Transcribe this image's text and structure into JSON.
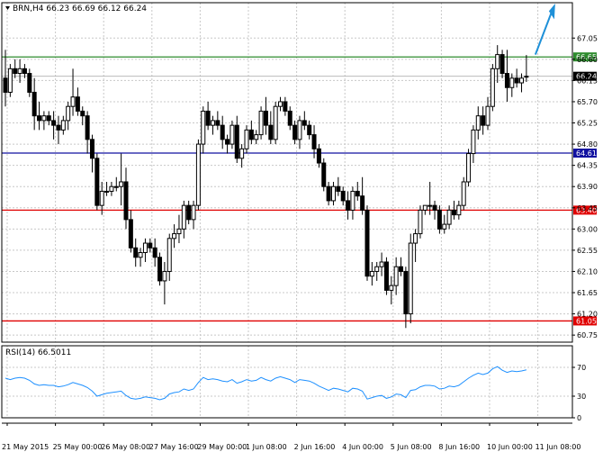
{
  "chart_data": {
    "type": "candlestick",
    "symbol_label": "BRN,H4",
    "ohlc_readout": "66.23 66.69 66.12 66.24",
    "grid": true,
    "price_axis": {
      "ylim": [
        60.6,
        67.8
      ],
      "ticks": [
        "67.05",
        "66.60",
        "66.15",
        "65.70",
        "65.25",
        "64.80",
        "64.35",
        "63.90",
        "63.45",
        "63.00",
        "62.55",
        "62.10",
        "61.65",
        "61.20",
        "60.75"
      ]
    },
    "time_axis": {
      "labels": [
        "21 May 2015",
        "25 May 00:00",
        "26 May 08:00",
        "27 May 16:00",
        "29 May 00:00",
        "1 Jun 08:00",
        "2 Jun 16:00",
        "4 Jun 00:00",
        "5 Jun 08:00",
        "8 Jun 16:00",
        "10 Jun 00:00",
        "11 Jun 08:00"
      ],
      "label_slot": [
        0,
        10,
        20,
        30,
        40,
        50,
        60,
        70,
        80,
        90,
        100,
        110
      ]
    },
    "levels": [
      {
        "value": 66.65,
        "label": "66.65",
        "color": "#2e8b2e"
      },
      {
        "value": 64.61,
        "label": "64.61",
        "color": "#1010a0"
      },
      {
        "value": 63.4,
        "label": "63.40",
        "color": "#e00000"
      },
      {
        "value": 61.05,
        "label": "61.05",
        "color": "#e00000"
      }
    ],
    "current_price": {
      "value": 66.24,
      "label": "66.24"
    },
    "trend_arrow": {
      "direction": "up",
      "color": "#1e90d8"
    },
    "candles": [
      [
        66.2,
        66.8,
        65.6,
        65.9
      ],
      [
        65.9,
        66.5,
        65.8,
        66.4
      ],
      [
        66.4,
        66.6,
        66.2,
        66.3
      ],
      [
        66.3,
        66.6,
        66.1,
        66.4
      ],
      [
        66.4,
        66.5,
        66.2,
        66.3
      ],
      [
        66.3,
        66.4,
        65.8,
        65.9
      ],
      [
        65.9,
        66.2,
        65.1,
        65.4
      ],
      [
        65.4,
        65.7,
        65.1,
        65.3
      ],
      [
        65.3,
        65.5,
        65.1,
        65.4
      ],
      [
        65.4,
        65.5,
        65.2,
        65.3
      ],
      [
        65.3,
        65.5,
        64.9,
        65.2
      ],
      [
        65.2,
        65.4,
        64.8,
        65.1
      ],
      [
        65.1,
        65.4,
        65.0,
        65.3
      ],
      [
        65.3,
        65.7,
        65.1,
        65.6
      ],
      [
        65.6,
        66.4,
        65.4,
        65.8
      ],
      [
        65.8,
        66.0,
        65.4,
        65.5
      ],
      [
        65.5,
        65.6,
        65.2,
        65.4
      ],
      [
        65.4,
        65.5,
        64.6,
        64.9
      ],
      [
        64.9,
        65.0,
        64.2,
        64.5
      ],
      [
        64.5,
        64.6,
        63.4,
        63.5
      ],
      [
        63.5,
        64.0,
        63.3,
        63.8
      ],
      [
        63.8,
        64.0,
        63.7,
        63.8
      ],
      [
        63.8,
        64.0,
        63.7,
        63.9
      ],
      [
        63.9,
        64.1,
        63.8,
        63.9
      ],
      [
        63.9,
        64.6,
        63.5,
        64.0
      ],
      [
        64.0,
        64.3,
        63.0,
        63.2
      ],
      [
        63.2,
        63.4,
        62.5,
        62.6
      ],
      [
        62.6,
        62.8,
        62.2,
        62.4
      ],
      [
        62.4,
        62.6,
        62.2,
        62.5
      ],
      [
        62.5,
        62.8,
        62.3,
        62.7
      ],
      [
        62.7,
        62.8,
        62.5,
        62.6
      ],
      [
        62.6,
        62.8,
        62.2,
        62.4
      ],
      [
        62.4,
        62.5,
        61.8,
        61.9
      ],
      [
        61.9,
        62.3,
        61.4,
        62.1
      ],
      [
        62.1,
        62.9,
        61.9,
        62.8
      ],
      [
        62.8,
        63.1,
        62.6,
        62.9
      ],
      [
        62.9,
        63.3,
        62.7,
        63.0
      ],
      [
        63.0,
        63.6,
        62.8,
        63.5
      ],
      [
        63.5,
        63.6,
        63.1,
        63.2
      ],
      [
        63.2,
        63.6,
        63.0,
        63.5
      ],
      [
        63.5,
        64.9,
        63.4,
        64.8
      ],
      [
        64.8,
        65.6,
        64.6,
        65.5
      ],
      [
        65.5,
        65.7,
        65.1,
        65.2
      ],
      [
        65.2,
        65.4,
        65.0,
        65.3
      ],
      [
        65.3,
        65.5,
        65.1,
        65.2
      ],
      [
        65.2,
        65.4,
        64.7,
        64.9
      ],
      [
        64.9,
        65.0,
        64.6,
        64.8
      ],
      [
        64.8,
        65.3,
        64.7,
        65.2
      ],
      [
        65.2,
        65.4,
        64.4,
        64.5
      ],
      [
        64.5,
        64.8,
        64.3,
        64.7
      ],
      [
        64.7,
        65.2,
        64.6,
        65.1
      ],
      [
        65.1,
        65.3,
        64.8,
        64.9
      ],
      [
        64.9,
        65.1,
        64.8,
        65.0
      ],
      [
        65.0,
        65.6,
        64.9,
        65.5
      ],
      [
        65.5,
        65.8,
        65.0,
        65.2
      ],
      [
        65.2,
        65.5,
        64.8,
        64.9
      ],
      [
        64.9,
        65.7,
        64.8,
        65.6
      ],
      [
        65.6,
        65.8,
        65.5,
        65.7
      ],
      [
        65.7,
        65.8,
        65.4,
        65.5
      ],
      [
        65.5,
        65.6,
        65.1,
        65.2
      ],
      [
        65.2,
        65.3,
        64.8,
        64.9
      ],
      [
        64.9,
        65.4,
        64.7,
        65.3
      ],
      [
        65.3,
        65.5,
        65.1,
        65.2
      ],
      [
        65.2,
        65.3,
        64.9,
        65.0
      ],
      [
        65.0,
        65.2,
        64.5,
        64.7
      ],
      [
        64.7,
        64.8,
        64.3,
        64.4
      ],
      [
        64.4,
        64.5,
        63.8,
        63.9
      ],
      [
        63.9,
        64.0,
        63.5,
        63.6
      ],
      [
        63.6,
        64.0,
        63.5,
        63.9
      ],
      [
        63.9,
        64.1,
        63.7,
        63.8
      ],
      [
        63.8,
        63.9,
        63.5,
        63.6
      ],
      [
        63.6,
        63.8,
        63.2,
        63.4
      ],
      [
        63.4,
        63.9,
        63.2,
        63.8
      ],
      [
        63.8,
        64.0,
        63.6,
        63.7
      ],
      [
        63.7,
        64.1,
        63.3,
        63.4
      ],
      [
        63.4,
        63.5,
        61.9,
        62.0
      ],
      [
        62.0,
        62.3,
        61.8,
        62.1
      ],
      [
        62.1,
        62.3,
        61.9,
        62.2
      ],
      [
        62.2,
        62.5,
        62.0,
        62.3
      ],
      [
        62.3,
        62.4,
        61.6,
        61.7
      ],
      [
        61.7,
        62.0,
        61.4,
        61.8
      ],
      [
        61.8,
        62.4,
        61.6,
        62.2
      ],
      [
        62.2,
        62.4,
        62.0,
        62.1
      ],
      [
        62.1,
        62.2,
        60.9,
        61.2
      ],
      [
        61.2,
        62.9,
        61.0,
        62.7
      ],
      [
        62.7,
        63.0,
        62.3,
        62.9
      ],
      [
        62.9,
        63.5,
        62.8,
        63.4
      ],
      [
        63.4,
        63.5,
        63.3,
        63.5
      ],
      [
        63.5,
        64.0,
        63.3,
        63.5
      ],
      [
        63.5,
        63.6,
        63.2,
        63.4
      ],
      [
        63.4,
        63.5,
        62.9,
        63.0
      ],
      [
        63.0,
        63.3,
        62.9,
        63.1
      ],
      [
        63.1,
        63.5,
        63.0,
        63.4
      ],
      [
        63.4,
        63.6,
        63.2,
        63.3
      ],
      [
        63.3,
        63.6,
        63.2,
        63.5
      ],
      [
        63.5,
        64.1,
        63.4,
        64.0
      ],
      [
        64.0,
        64.7,
        63.9,
        64.6
      ],
      [
        64.6,
        65.2,
        64.4,
        65.1
      ],
      [
        65.1,
        65.6,
        64.9,
        65.4
      ],
      [
        65.4,
        65.6,
        65.0,
        65.2
      ],
      [
        65.2,
        65.8,
        65.1,
        65.6
      ],
      [
        65.6,
        66.5,
        65.5,
        66.4
      ],
      [
        66.4,
        66.9,
        66.1,
        66.7
      ],
      [
        66.7,
        66.8,
        66.2,
        66.3
      ],
      [
        66.3,
        66.8,
        65.7,
        66.0
      ],
      [
        66.0,
        66.3,
        65.8,
        66.2
      ],
      [
        66.2,
        66.4,
        66.0,
        66.1
      ],
      [
        66.1,
        66.3,
        65.9,
        66.2
      ],
      [
        66.23,
        66.69,
        66.12,
        66.24
      ]
    ],
    "rsi": {
      "label": "RSI(14) 66.5011",
      "ylim": [
        0,
        100
      ],
      "levels": [
        70,
        30
      ],
      "ticks": [
        "70",
        "30",
        "0"
      ],
      "values": [
        55,
        53,
        55,
        56,
        55,
        52,
        47,
        45,
        46,
        45,
        45,
        43,
        44,
        46,
        49,
        47,
        45,
        42,
        37,
        30,
        32,
        34,
        35,
        36,
        37,
        31,
        27,
        26,
        27,
        29,
        28,
        27,
        25,
        27,
        33,
        35,
        36,
        40,
        38,
        40,
        49,
        56,
        53,
        54,
        53,
        51,
        50,
        53,
        48,
        50,
        53,
        51,
        52,
        56,
        53,
        51,
        55,
        57,
        55,
        53,
        49,
        53,
        52,
        51,
        48,
        44,
        41,
        38,
        41,
        40,
        38,
        36,
        41,
        40,
        37,
        26,
        28,
        30,
        31,
        27,
        29,
        33,
        32,
        28,
        38,
        39,
        43,
        45,
        45,
        44,
        40,
        41,
        44,
        43,
        45,
        50,
        55,
        59,
        62,
        60,
        62,
        68,
        71,
        66,
        63,
        65,
        64,
        65,
        66.5
      ]
    }
  }
}
